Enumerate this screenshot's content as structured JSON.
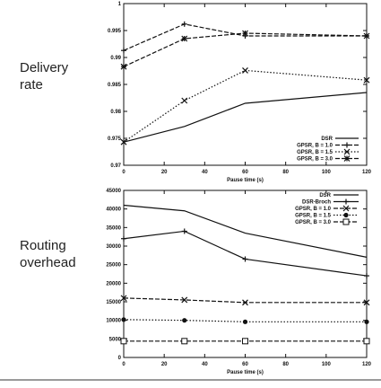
{
  "slide": {
    "left_labels": [
      "Delivery\nrate",
      "Routing\noverhead"
    ]
  },
  "chart_data": [
    {
      "type": "line",
      "title": "",
      "xlabel": "Pause time (s)",
      "ylabel": "",
      "x": [
        0,
        30,
        60,
        120
      ],
      "xlim": [
        0,
        120
      ],
      "ylim": [
        0.97,
        1.0
      ],
      "xticks": [
        "0",
        "20",
        "40",
        "60",
        "80",
        "100",
        "120"
      ],
      "yticks": [
        "0.97",
        "0.975",
        "0.98",
        "0.985",
        "0.99",
        "0.995",
        "1"
      ],
      "grid": false,
      "legend": "bottom-right",
      "series": [
        {
          "name": "DSR",
          "marker": "none",
          "dash": "solid",
          "values": [
            0.9743,
            0.9772,
            0.9815,
            0.9835
          ]
        },
        {
          "name": "GPSR, B = 1.0",
          "marker": "plus",
          "dash": "dashed",
          "values": [
            0.9913,
            0.9962,
            0.994,
            0.994
          ]
        },
        {
          "name": "GPSR, B = 1.5",
          "marker": "x",
          "dash": "dotted",
          "values": [
            0.9743,
            0.982,
            0.9876,
            0.9858
          ]
        },
        {
          "name": "GPSR, B = 3.0",
          "marker": "star",
          "dash": "dashed",
          "values": [
            0.9883,
            0.9935,
            0.9945,
            0.994
          ]
        }
      ]
    },
    {
      "type": "line",
      "title": "",
      "xlabel": "Pause time (s)",
      "ylabel": "",
      "x": [
        0,
        30,
        60,
        120
      ],
      "xlim": [
        0,
        120
      ],
      "ylim": [
        0,
        45000
      ],
      "xticks": [
        "0",
        "20",
        "40",
        "60",
        "80",
        "100",
        "120"
      ],
      "yticks": [
        "0",
        "5000",
        "10000",
        "15000",
        "20000",
        "25000",
        "30000",
        "35000",
        "40000",
        "45000"
      ],
      "grid": false,
      "legend": "top-right",
      "series": [
        {
          "name": "DSR",
          "marker": "none",
          "dash": "solid",
          "values": [
            41000,
            39500,
            33500,
            27000
          ]
        },
        {
          "name": "DSR-Broch",
          "marker": "plus",
          "dash": "solid",
          "values": [
            32000,
            34000,
            26500,
            22000
          ]
        },
        {
          "name": "GPSR, B = 1.0",
          "marker": "x",
          "dash": "dashed",
          "values": [
            16000,
            15500,
            14800,
            14800
          ]
        },
        {
          "name": "GPSR, B = 1.5",
          "marker": "dot",
          "dash": "dotted",
          "values": [
            10200,
            10000,
            9600,
            9600
          ]
        },
        {
          "name": "GPSR, B = 3.0",
          "marker": "square",
          "dash": "dashed",
          "values": [
            4400,
            4400,
            4400,
            4400
          ]
        }
      ]
    }
  ]
}
